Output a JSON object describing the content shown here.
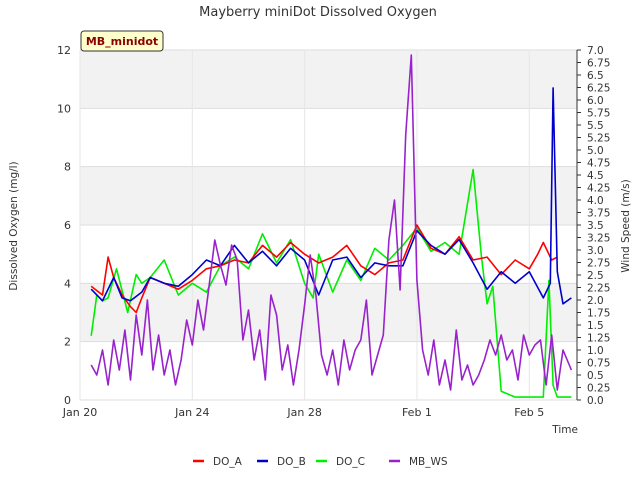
{
  "chart_data": {
    "type": "line",
    "title": "Mayberry miniDot Dissolved Oxygen",
    "badge": "MB_minidot",
    "xlabel": "Time",
    "ylabel": "Dissolved Oxygen (mg/l)",
    "y2label": "Wind Speed (m/s)",
    "xlim": [
      0,
      17.7
    ],
    "ylim": [
      0,
      12
    ],
    "y2lim": [
      0,
      7.0
    ],
    "x_ticks": [
      {
        "x": 0,
        "label": "Jan 20"
      },
      {
        "x": 4,
        "label": "Jan 24"
      },
      {
        "x": 8,
        "label": "Jan 28"
      },
      {
        "x": 12,
        "label": "Feb 1"
      },
      {
        "x": 16,
        "label": "Feb 5"
      }
    ],
    "y_ticks": [
      "0",
      "2",
      "4",
      "6",
      "8",
      "10",
      "12"
    ],
    "y2_ticks": [
      "0.0",
      "0.25",
      "0.5",
      "0.75",
      "1.0",
      "1.25",
      "1.5",
      "1.75",
      "2.0",
      "2.25",
      "2.5",
      "2.75",
      "3.0",
      "3.25",
      "3.5",
      "3.75",
      "4.0",
      "4.25",
      "4.5",
      "4.75",
      "5.0",
      "5.25",
      "5.5",
      "5.75",
      "6.0",
      "6.25",
      "6.5",
      "6.75",
      "7.0"
    ],
    "grid": true,
    "legend_position": "bottom",
    "series": [
      {
        "name": "DO_A",
        "color": "#ff0000",
        "axis": "left",
        "x": [
          0.4,
          0.8,
          1.0,
          1.2,
          1.5,
          1.8,
          2.0,
          2.2,
          2.5,
          3.0,
          3.5,
          4.0,
          4.5,
          5.0,
          5.5,
          6.0,
          6.5,
          7.0,
          7.5,
          8.0,
          8.5,
          9.0,
          9.5,
          10.0,
          10.5,
          11.0,
          11.5,
          12.0,
          12.5,
          13.0,
          13.5,
          14.0,
          14.5,
          15.0,
          15.5,
          16.0,
          16.3,
          16.5,
          16.8,
          17.0
        ],
        "y": [
          3.9,
          3.6,
          4.9,
          4.2,
          3.6,
          3.2,
          3.0,
          3.5,
          4.2,
          4.0,
          3.8,
          4.1,
          4.5,
          4.6,
          4.8,
          4.7,
          5.3,
          4.9,
          5.4,
          5.0,
          4.7,
          4.9,
          5.3,
          4.6,
          4.3,
          4.7,
          4.8,
          6.0,
          5.2,
          5.0,
          5.6,
          4.8,
          4.9,
          4.3,
          4.8,
          4.5,
          5.0,
          5.4,
          4.8,
          4.9
        ]
      },
      {
        "name": "DO_B",
        "color": "#0000cc",
        "axis": "left",
        "x": [
          0.4,
          0.8,
          1.2,
          1.5,
          1.8,
          2.2,
          2.5,
          3.0,
          3.5,
          4.0,
          4.5,
          5.0,
          5.5,
          6.0,
          6.5,
          7.0,
          7.5,
          8.0,
          8.5,
          9.0,
          9.5,
          10.0,
          10.5,
          11.0,
          11.5,
          12.0,
          12.5,
          13.0,
          13.5,
          14.0,
          14.5,
          15.0,
          15.5,
          16.0,
          16.5,
          16.75,
          16.85,
          17.0,
          17.2,
          17.5
        ],
        "y": [
          3.8,
          3.4,
          4.2,
          3.5,
          3.4,
          3.7,
          4.2,
          4.0,
          3.9,
          4.3,
          4.8,
          4.6,
          5.3,
          4.7,
          5.1,
          4.6,
          5.2,
          4.8,
          3.6,
          4.8,
          4.9,
          4.2,
          4.7,
          4.6,
          4.6,
          5.8,
          5.3,
          5.0,
          5.5,
          4.7,
          3.8,
          4.4,
          4.0,
          4.4,
          3.5,
          4.0,
          10.7,
          4.4,
          3.3,
          3.5
        ]
      },
      {
        "name": "DO_C",
        "color": "#00ee00",
        "axis": "left",
        "x": [
          0.4,
          0.6,
          0.8,
          1.0,
          1.3,
          1.7,
          2.0,
          2.2,
          2.5,
          3.0,
          3.5,
          4.0,
          4.5,
          5.0,
          5.5,
          6.0,
          6.5,
          7.0,
          7.5,
          8.0,
          8.3,
          8.5,
          9.0,
          9.5,
          10.0,
          10.5,
          11.0,
          11.5,
          12.0,
          12.5,
          13.0,
          13.5,
          14.0,
          14.3,
          14.5,
          14.7,
          15.0,
          15.5,
          16.0,
          16.5,
          16.7,
          16.85,
          17.0,
          17.5
        ],
        "y": [
          2.2,
          3.6,
          3.4,
          3.5,
          4.5,
          3.0,
          4.3,
          4.0,
          4.2,
          4.8,
          3.6,
          4.0,
          3.7,
          4.6,
          4.9,
          4.5,
          5.7,
          4.7,
          5.5,
          4.0,
          3.5,
          5.0,
          3.7,
          4.8,
          4.1,
          5.2,
          4.8,
          5.3,
          5.9,
          5.1,
          5.4,
          5.0,
          7.9,
          4.9,
          3.3,
          3.9,
          0.3,
          0.1,
          0.1,
          0.1,
          4.1,
          0.5,
          0.1,
          0.1
        ]
      },
      {
        "name": "MB_WS",
        "color": "#9922cc",
        "axis": "right",
        "x": [
          0.4,
          0.6,
          0.8,
          1.0,
          1.2,
          1.4,
          1.6,
          1.8,
          2.0,
          2.2,
          2.4,
          2.6,
          2.8,
          3.0,
          3.2,
          3.4,
          3.6,
          3.8,
          4.0,
          4.2,
          4.4,
          4.6,
          4.8,
          5.0,
          5.2,
          5.4,
          5.6,
          5.8,
          6.0,
          6.2,
          6.4,
          6.6,
          6.8,
          7.0,
          7.2,
          7.4,
          7.6,
          7.8,
          8.0,
          8.2,
          8.4,
          8.6,
          8.8,
          9.0,
          9.2,
          9.4,
          9.6,
          9.8,
          10.0,
          10.2,
          10.4,
          10.6,
          10.8,
          11.0,
          11.2,
          11.4,
          11.6,
          11.8,
          12.0,
          12.2,
          12.4,
          12.6,
          12.8,
          13.0,
          13.2,
          13.4,
          13.6,
          13.8,
          14.0,
          14.2,
          14.4,
          14.6,
          14.8,
          15.0,
          15.2,
          15.4,
          15.6,
          15.8,
          16.0,
          16.2,
          16.4,
          16.6,
          16.8,
          17.0,
          17.2,
          17.5
        ],
        "y": [
          0.7,
          0.5,
          1.0,
          0.3,
          1.2,
          0.6,
          1.4,
          0.4,
          1.7,
          0.9,
          2.0,
          0.6,
          1.3,
          0.5,
          1.0,
          0.3,
          0.8,
          1.6,
          1.1,
          2.0,
          1.4,
          2.3,
          3.2,
          2.7,
          2.3,
          3.1,
          2.8,
          1.2,
          1.8,
          0.8,
          1.4,
          0.4,
          2.1,
          1.7,
          0.6,
          1.1,
          0.3,
          1.0,
          1.9,
          2.9,
          2.1,
          0.9,
          0.5,
          1.0,
          0.3,
          1.2,
          0.6,
          1.0,
          1.2,
          2.0,
          0.5,
          0.9,
          1.3,
          3.2,
          4.0,
          2.2,
          5.3,
          6.9,
          2.4,
          1.0,
          0.5,
          1.2,
          0.3,
          0.8,
          0.2,
          1.4,
          0.4,
          0.7,
          0.3,
          0.5,
          0.8,
          1.2,
          0.9,
          1.3,
          0.8,
          1.0,
          0.4,
          1.3,
          0.9,
          1.1,
          1.2,
          0.3,
          1.3,
          0.2,
          1.0,
          0.6
        ]
      }
    ]
  }
}
